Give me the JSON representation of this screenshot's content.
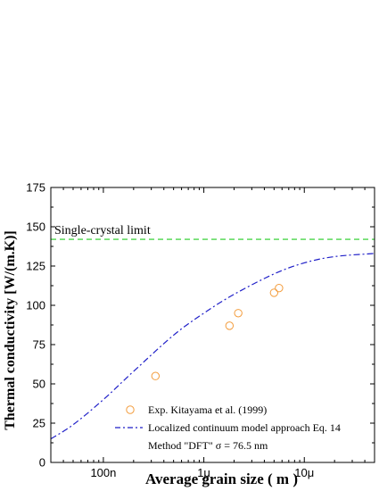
{
  "chart_data": {
    "type": "scatter",
    "title": "",
    "xlabel": "Average grain size ( m )",
    "ylabel": "Thermal conductivity [W/(m.K)]",
    "x_scale": "log",
    "x_unit": "m",
    "xlim": [
      3e-08,
      5e-05
    ],
    "ylim": [
      0,
      175
    ],
    "xticks": [
      {
        "value": 1e-07,
        "label": "100n"
      },
      {
        "value": 1e-06,
        "label": "1μ"
      },
      {
        "value": 1e-05,
        "label": "10μ"
      }
    ],
    "yticks": [
      0,
      25,
      50,
      75,
      100,
      125,
      150,
      175
    ],
    "grid": false,
    "legend_position": "bottom-right",
    "annotations": [
      {
        "text": "Single-crystal limit",
        "value": 142
      }
    ],
    "series": [
      {
        "name": "Exp. Kitayama et al. (1999)",
        "type": "scatter",
        "color": "#f39c3c",
        "x": [
          3.3e-07,
          1.8e-06,
          2.2e-06,
          5e-06,
          5.6e-06
        ],
        "y": [
          55,
          87,
          95,
          108,
          111
        ]
      },
      {
        "name": "Localized continuum model approach Eq. 14",
        "type": "line",
        "style": "dash-dot",
        "color": "#1f1fc8",
        "x": [
          3e-08,
          5e-08,
          1e-07,
          2e-07,
          5e-07,
          1e-06,
          2e-06,
          5e-06,
          1e-05,
          2e-05,
          5e-05
        ],
        "y": [
          15,
          24,
          40,
          58,
          81,
          95,
          107,
          120,
          127,
          131,
          133
        ]
      },
      {
        "name": "Single-crystal limit",
        "type": "hline",
        "style": "dashed",
        "color": "#22cc22",
        "y": 142
      }
    ],
    "legend_note": "Method \"DFT\" σ = 76.5 nm"
  }
}
